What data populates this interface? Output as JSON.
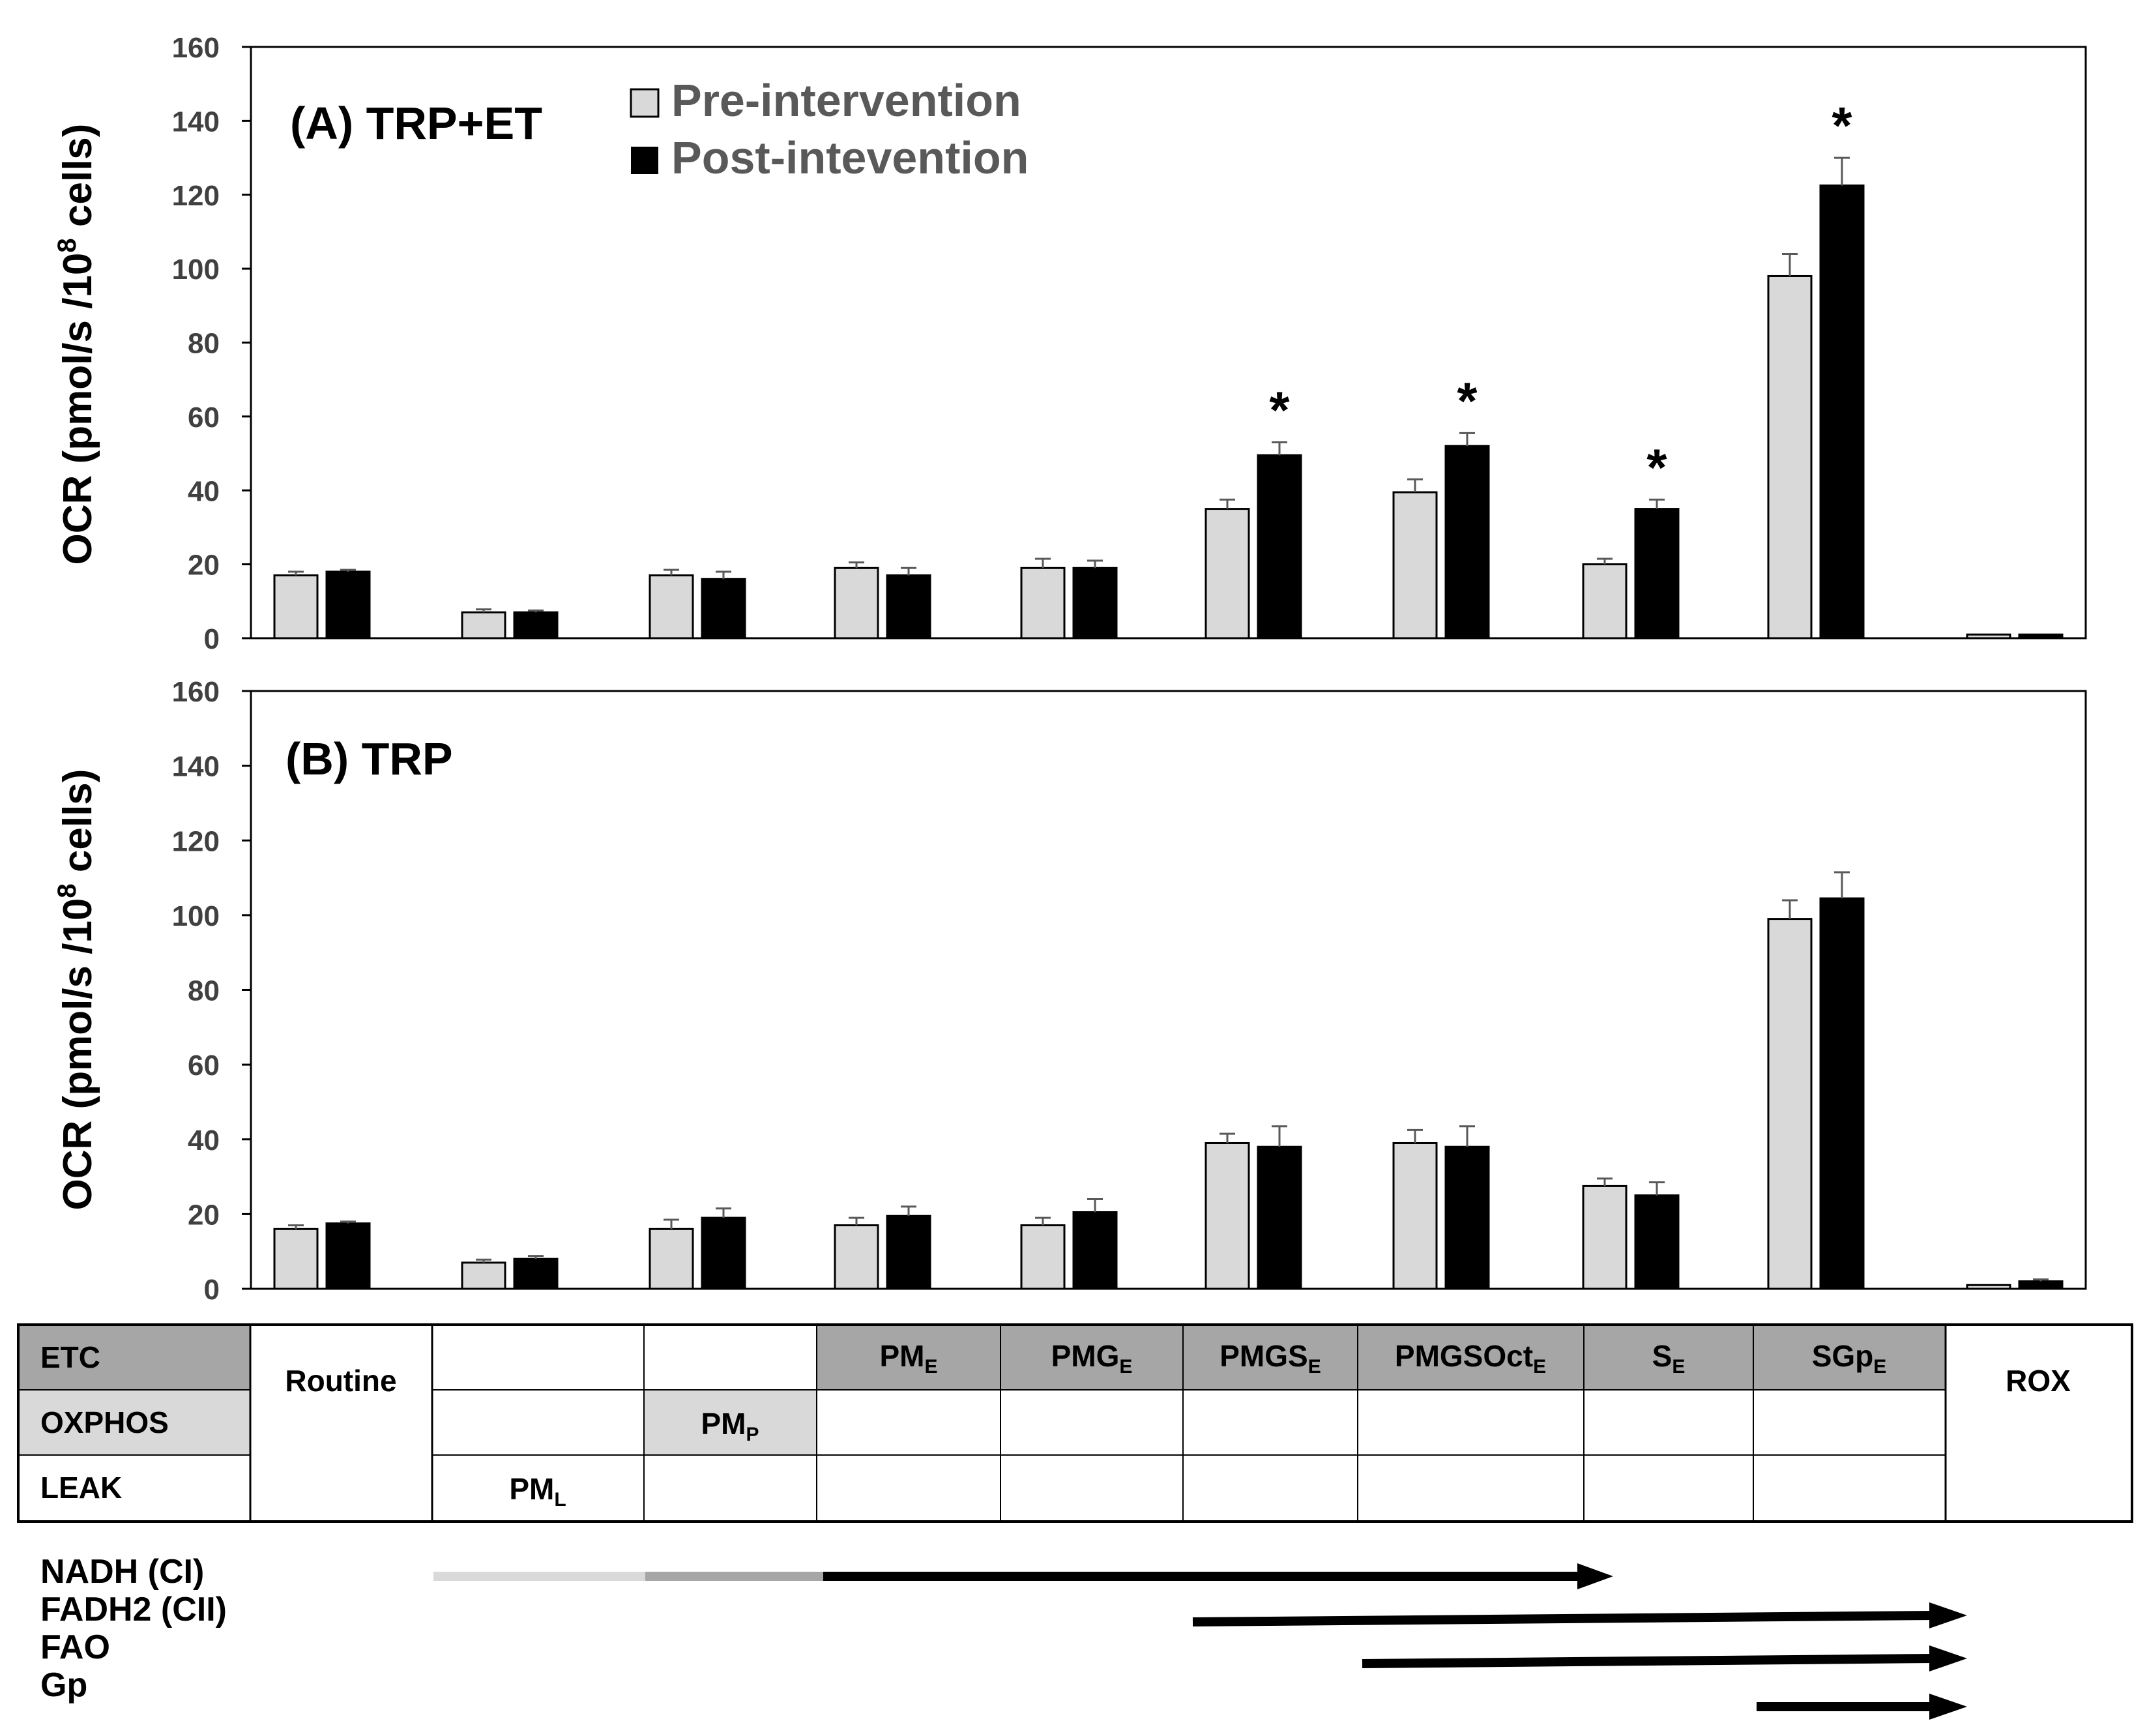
{
  "chart_data": [
    {
      "type": "bar",
      "panel_label": "(A) TRP+ET",
      "ylabel": "OCR (pmol/s /10",
      "ylabel_sup": "8",
      "ylabel_end": " cells)",
      "ylim": [
        0,
        160
      ],
      "yticks": [
        "0",
        "20",
        "40",
        "60",
        "80",
        "100",
        "120",
        "140",
        "160"
      ],
      "legend": {
        "pre": "Pre-intervention",
        "post": "Post-intevention",
        "placement": "top-left"
      },
      "categories": [
        "Routine",
        "PML",
        "PMP",
        "PME",
        "PMGE",
        "PMGSE",
        "PMGSOctE",
        "SE",
        "SGpE",
        "ROX"
      ],
      "series": [
        {
          "name": "Pre-intervention",
          "color": "#d9d9d9",
          "values": [
            17,
            7,
            17,
            19,
            19,
            35,
            39.5,
            20,
            98,
            1
          ],
          "errors": [
            1,
            0.8,
            1.5,
            1.5,
            2.5,
            2.5,
            3.5,
            1.5,
            6,
            0
          ]
        },
        {
          "name": "Post-intevention",
          "color": "#000000",
          "values": [
            18,
            7,
            16,
            17,
            19,
            49.5,
            52,
            35,
            122.5,
            1
          ],
          "errors": [
            0.5,
            0.5,
            2,
            2,
            2,
            3.5,
            3.5,
            2.5,
            7.5,
            0
          ]
        }
      ],
      "significance": [
        "",
        "",
        "",
        "",
        "",
        "*",
        "*",
        "*",
        "*",
        ""
      ]
    },
    {
      "type": "bar",
      "panel_label": "(B) TRP",
      "ylabel": "OCR (pmol/s /10",
      "ylabel_sup": "8",
      "ylabel_end": " cells)",
      "ylim": [
        0,
        160
      ],
      "yticks": [
        "0",
        "20",
        "40",
        "60",
        "80",
        "100",
        "120",
        "140",
        "160"
      ],
      "categories": [
        "Routine",
        "PML",
        "PMP",
        "PME",
        "PMGE",
        "PMGSE",
        "PMGSOctE",
        "SE",
        "SGpE",
        "ROX"
      ],
      "series": [
        {
          "name": "Pre-intervention",
          "color": "#d9d9d9",
          "values": [
            16,
            7,
            16,
            17,
            17,
            39,
            39,
            27.5,
            99,
            1
          ],
          "errors": [
            1,
            0.8,
            2.5,
            2,
            2,
            2.5,
            3.5,
            2,
            5,
            0
          ]
        },
        {
          "name": "Post-intevention",
          "color": "#000000",
          "values": [
            17.5,
            8,
            19,
            19.5,
            20.5,
            38,
            38,
            25,
            104.5,
            2
          ],
          "errors": [
            0.5,
            0.8,
            2.5,
            2.5,
            3.5,
            5.5,
            5.5,
            3.5,
            7,
            0.5
          ]
        }
      ],
      "significance": [
        "",
        "",
        "",
        "",
        "",
        "",
        "",
        "",
        "",
        ""
      ]
    }
  ],
  "protocol_table": {
    "row_labels": [
      "ETC",
      "OXPHOS",
      "LEAK"
    ],
    "routine": "Routine",
    "rox": "ROX",
    "etc_cells": [
      {
        "base": "PM",
        "sub": "E"
      },
      {
        "base": "PMG",
        "sub": "E"
      },
      {
        "base": "PMGS",
        "sub": "E"
      },
      {
        "base": "PMGSOct",
        "sub": "E"
      },
      {
        "base": "S",
        "sub": "E"
      },
      {
        "base": "SGp",
        "sub": "E"
      }
    ],
    "oxphos_cell": {
      "base": "PM",
      "sub": "P"
    },
    "leak_cell": {
      "base": "PM",
      "sub": "L"
    },
    "colors": {
      "etc_header": "#a6a6a6",
      "oxphos_header": "#d9d9d9"
    }
  },
  "pathways": [
    "NADH (CI)",
    "FADH2 (CII)",
    "FAO",
    "Gp"
  ]
}
